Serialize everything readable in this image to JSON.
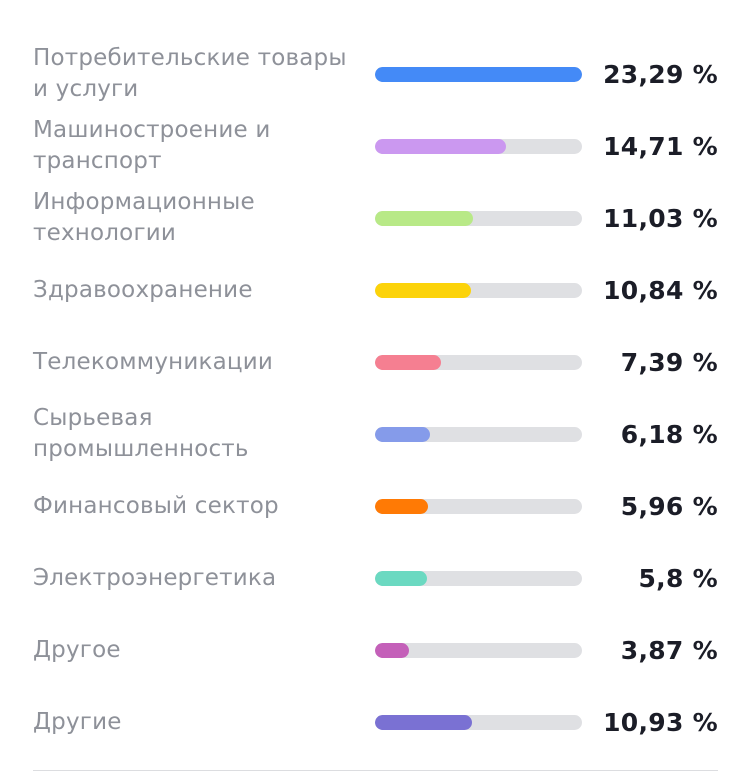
{
  "chart_data": {
    "type": "bar",
    "orientation": "horizontal",
    "categories": [
      "Потребительские товары и услуги",
      "Машиностроение и транспорт",
      "Информационные технологии",
      "Здравоохранение",
      "Телекоммуникации",
      "Сырьевая промышленность",
      "Финансовый сектор",
      "Электроэнергетика",
      "Другое",
      "Другие"
    ],
    "values": [
      23.29,
      14.71,
      11.03,
      10.84,
      7.39,
      6.18,
      5.96,
      5.8,
      3.87,
      10.93
    ],
    "value_labels": [
      "23,29 %",
      "14,71 %",
      "11,03 %",
      "10,84 %",
      "7,39 %",
      "6,18 %",
      "5,96 %",
      "5,8 %",
      "3,87 %",
      "10,93 %"
    ],
    "colors": [
      "#448af7",
      "#cb98f0",
      "#b8e987",
      "#fcd30a",
      "#f57f91",
      "#859bea",
      "#ff7a05",
      "#6bd9c1",
      "#c460b9",
      "#7a71d3"
    ],
    "scale_max": 23.29,
    "track_color": "#dfe0e3",
    "title": "",
    "xlabel": "",
    "ylabel": ""
  }
}
